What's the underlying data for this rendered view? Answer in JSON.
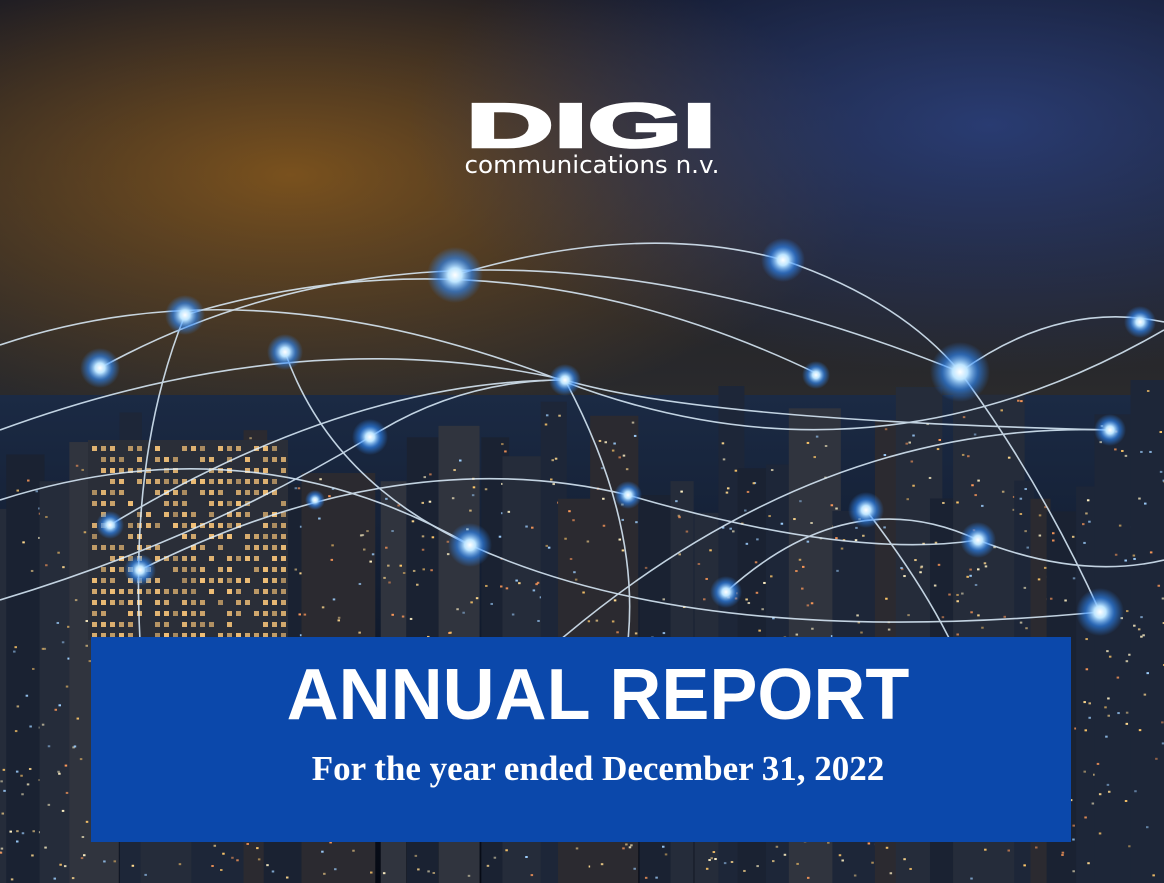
{
  "logo": {
    "name": "DIGI",
    "tagline": "communications n.v."
  },
  "banner": {
    "title": "ANNUAL REPORT",
    "subtitle": "For the year ended December 31, 2022"
  }
}
